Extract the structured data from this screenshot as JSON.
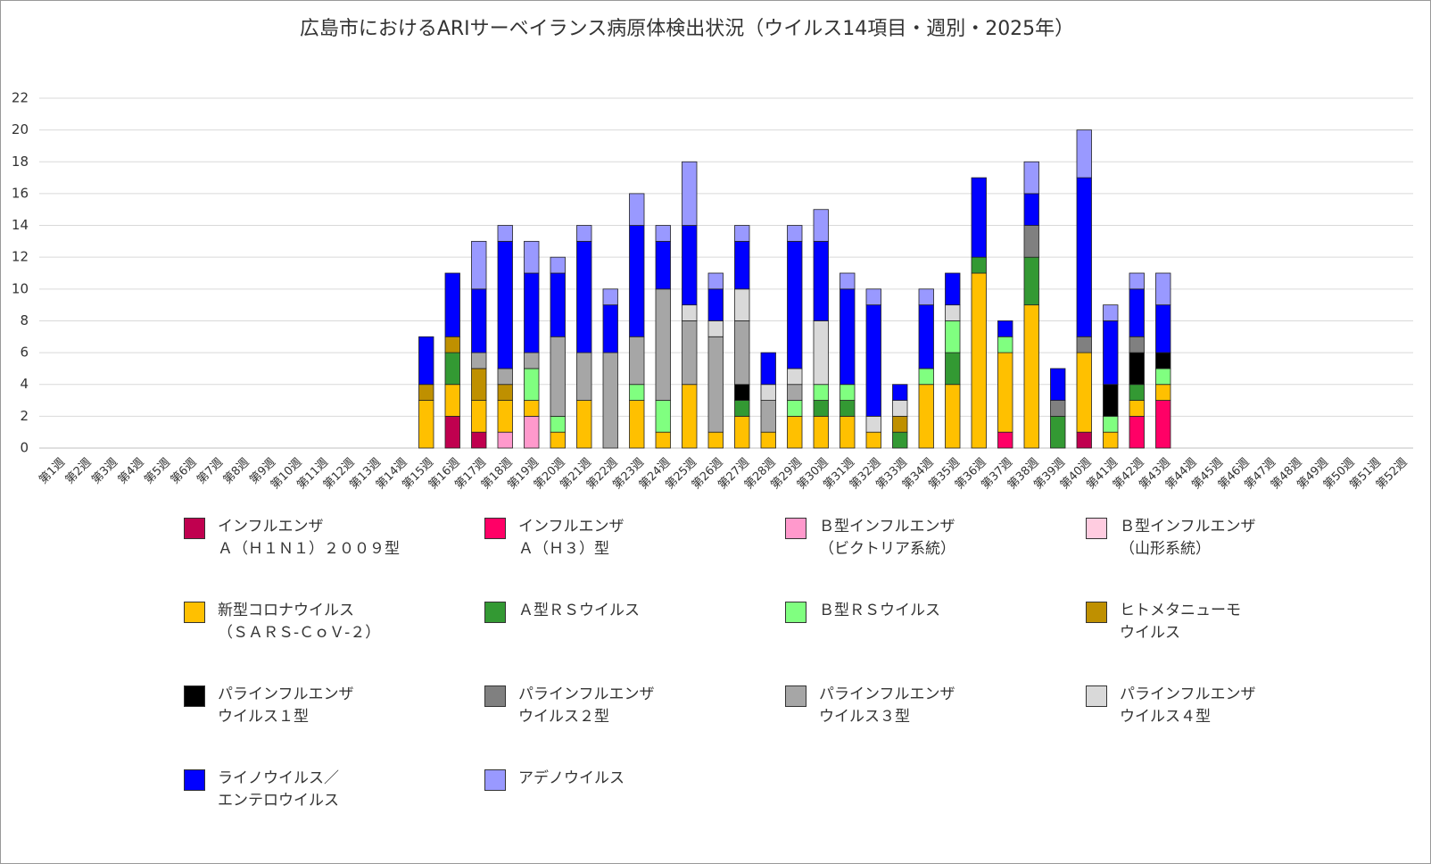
{
  "chart_data": {
    "type": "stacked-bar",
    "title": "広島市におけるARIサーベイランス病原体検出状況（ウイルス14項目・週別・2025年）",
    "categories": [
      "第1週",
      "第2週",
      "第3週",
      "第4週",
      "第5週",
      "第6週",
      "第7週",
      "第8週",
      "第9週",
      "第10週",
      "第11週",
      "第12週",
      "第13週",
      "第14週",
      "第15週",
      "第16週",
      "第17週",
      "第18週",
      "第19週",
      "第20週",
      "第21週",
      "第22週",
      "第23週",
      "第24週",
      "第25週",
      "第26週",
      "第27週",
      "第28週",
      "第29週",
      "第30週",
      "第31週",
      "第32週",
      "第33週",
      "第34週",
      "第35週",
      "第36週",
      "第37週",
      "第38週",
      "第39週",
      "第40週",
      "第41週",
      "第42週",
      "第43週",
      "第44週",
      "第45週",
      "第46週",
      "第47週",
      "第48週",
      "第49週",
      "第50週",
      "第51週",
      "第52週"
    ],
    "ylim": [
      0,
      22
    ],
    "yticks": [
      0,
      2,
      4,
      6,
      8,
      10,
      12,
      14,
      16,
      18,
      20,
      22
    ],
    "grid": true,
    "series": [
      {
        "name": "インフルエンザ\nＡ（Ｈ１Ｎ１）２００９型",
        "color": "#c0004f",
        "values": [
          0,
          0,
          0,
          0,
          0,
          0,
          0,
          0,
          0,
          0,
          0,
          0,
          0,
          0,
          0,
          2,
          1,
          0,
          0,
          0,
          0,
          0,
          0,
          0,
          0,
          0,
          0,
          0,
          0,
          0,
          0,
          0,
          0,
          0,
          0,
          0,
          0,
          0,
          0,
          1,
          0,
          0,
          0,
          0,
          0,
          0,
          0,
          0,
          0,
          0,
          0,
          0
        ]
      },
      {
        "name": "インフルエンザ\nＡ（Ｈ３）型",
        "color": "#ff0066",
        "values": [
          0,
          0,
          0,
          0,
          0,
          0,
          0,
          0,
          0,
          0,
          0,
          0,
          0,
          0,
          0,
          0,
          0,
          0,
          0,
          0,
          0,
          0,
          0,
          0,
          0,
          0,
          0,
          0,
          0,
          0,
          0,
          0,
          0,
          0,
          0,
          0,
          1,
          0,
          0,
          0,
          0,
          2,
          3,
          0,
          0,
          0,
          0,
          0,
          0,
          0,
          0,
          0
        ]
      },
      {
        "name": "Ｂ型インフルエンザ\n（ビクトリア系統）",
        "color": "#ff99cc",
        "values": [
          0,
          0,
          0,
          0,
          0,
          0,
          0,
          0,
          0,
          0,
          0,
          0,
          0,
          0,
          0,
          0,
          0,
          1,
          2,
          0,
          0,
          0,
          0,
          0,
          0,
          0,
          0,
          0,
          0,
          0,
          0,
          0,
          0,
          0,
          0,
          0,
          0,
          0,
          0,
          0,
          0,
          0,
          0,
          0,
          0,
          0,
          0,
          0,
          0,
          0,
          0,
          0
        ]
      },
      {
        "name": "Ｂ型インフルエンザ\n（山形系統）",
        "color": "#ffcce0",
        "values": [
          0,
          0,
          0,
          0,
          0,
          0,
          0,
          0,
          0,
          0,
          0,
          0,
          0,
          0,
          0,
          0,
          0,
          0,
          0,
          0,
          0,
          0,
          0,
          0,
          0,
          0,
          0,
          0,
          0,
          0,
          0,
          0,
          0,
          0,
          0,
          0,
          0,
          0,
          0,
          0,
          0,
          0,
          0,
          0,
          0,
          0,
          0,
          0,
          0,
          0,
          0,
          0
        ]
      },
      {
        "name": "新型コロナウイルス\n（ＳＡＲＳ-ＣｏＶ-２）",
        "color": "#ffc000",
        "values": [
          0,
          0,
          0,
          0,
          0,
          0,
          0,
          0,
          0,
          0,
          0,
          0,
          0,
          0,
          3,
          2,
          2,
          2,
          1,
          1,
          3,
          0,
          3,
          1,
          4,
          1,
          2,
          1,
          2,
          2,
          2,
          1,
          0,
          4,
          4,
          11,
          5,
          9,
          0,
          5,
          1,
          1,
          1,
          0,
          0,
          0,
          0,
          0,
          0,
          0,
          0,
          0
        ]
      },
      {
        "name": "Ａ型ＲＳウイルス",
        "color": "#339933",
        "values": [
          0,
          0,
          0,
          0,
          0,
          0,
          0,
          0,
          0,
          0,
          0,
          0,
          0,
          0,
          0,
          2,
          0,
          0,
          0,
          0,
          0,
          0,
          0,
          0,
          0,
          0,
          1,
          0,
          0,
          1,
          1,
          0,
          1,
          0,
          2,
          1,
          0,
          3,
          2,
          0,
          0,
          1,
          0,
          0,
          0,
          0,
          0,
          0,
          0,
          0,
          0,
          0
        ]
      },
      {
        "name": "Ｂ型ＲＳウイルス",
        "color": "#80ff80",
        "values": [
          0,
          0,
          0,
          0,
          0,
          0,
          0,
          0,
          0,
          0,
          0,
          0,
          0,
          0,
          0,
          0,
          0,
          0,
          2,
          1,
          0,
          0,
          1,
          2,
          0,
          0,
          0,
          0,
          1,
          1,
          1,
          0,
          0,
          1,
          2,
          0,
          1,
          0,
          0,
          0,
          1,
          0,
          1,
          0,
          0,
          0,
          0,
          0,
          0,
          0,
          0,
          0
        ]
      },
      {
        "name": "ヒトメタニューモ\nウイルス",
        "color": "#bf9000",
        "values": [
          0,
          0,
          0,
          0,
          0,
          0,
          0,
          0,
          0,
          0,
          0,
          0,
          0,
          0,
          1,
          1,
          2,
          1,
          0,
          0,
          0,
          0,
          0,
          0,
          0,
          0,
          0,
          0,
          0,
          0,
          0,
          0,
          1,
          0,
          0,
          0,
          0,
          0,
          0,
          0,
          0,
          0,
          0,
          0,
          0,
          0,
          0,
          0,
          0,
          0,
          0,
          0
        ]
      },
      {
        "name": "パラインフルエンザ\nウイルス１型",
        "color": "#000000",
        "values": [
          0,
          0,
          0,
          0,
          0,
          0,
          0,
          0,
          0,
          0,
          0,
          0,
          0,
          0,
          0,
          0,
          0,
          0,
          0,
          0,
          0,
          0,
          0,
          0,
          0,
          0,
          1,
          0,
          0,
          0,
          0,
          0,
          0,
          0,
          0,
          0,
          0,
          0,
          0,
          0,
          2,
          2,
          1,
          0,
          0,
          0,
          0,
          0,
          0,
          0,
          0,
          0
        ]
      },
      {
        "name": "パラインフルエンザ\nウイルス２型",
        "color": "#808080",
        "values": [
          0,
          0,
          0,
          0,
          0,
          0,
          0,
          0,
          0,
          0,
          0,
          0,
          0,
          0,
          0,
          0,
          0,
          0,
          0,
          0,
          0,
          0,
          0,
          0,
          0,
          0,
          0,
          0,
          0,
          0,
          0,
          0,
          0,
          0,
          0,
          0,
          0,
          2,
          1,
          1,
          0,
          1,
          0,
          0,
          0,
          0,
          0,
          0,
          0,
          0,
          0,
          0
        ]
      },
      {
        "name": "パラインフルエンザ\nウイルス３型",
        "color": "#a6a6a6",
        "values": [
          0,
          0,
          0,
          0,
          0,
          0,
          0,
          0,
          0,
          0,
          0,
          0,
          0,
          0,
          0,
          0,
          1,
          1,
          1,
          5,
          3,
          6,
          3,
          7,
          4,
          6,
          4,
          2,
          1,
          0,
          0,
          0,
          0,
          0,
          0,
          0,
          0,
          0,
          0,
          0,
          0,
          0,
          0,
          0,
          0,
          0,
          0,
          0,
          0,
          0,
          0,
          0
        ]
      },
      {
        "name": "パラインフルエンザ\nウイルス４型",
        "color": "#d9d9d9",
        "values": [
          0,
          0,
          0,
          0,
          0,
          0,
          0,
          0,
          0,
          0,
          0,
          0,
          0,
          0,
          0,
          0,
          0,
          0,
          0,
          0,
          0,
          0,
          0,
          0,
          1,
          1,
          2,
          1,
          1,
          4,
          0,
          1,
          1,
          0,
          1,
          0,
          0,
          0,
          0,
          0,
          0,
          0,
          0,
          0,
          0,
          0,
          0,
          0,
          0,
          0,
          0,
          0
        ]
      },
      {
        "name": "ライノウイルス／\nエンテロウイルス",
        "color": "#0000ff",
        "values": [
          0,
          0,
          0,
          0,
          0,
          0,
          0,
          0,
          0,
          0,
          0,
          0,
          0,
          0,
          3,
          4,
          4,
          8,
          5,
          4,
          7,
          3,
          7,
          3,
          5,
          2,
          3,
          2,
          8,
          5,
          6,
          7,
          1,
          4,
          2,
          5,
          1,
          2,
          2,
          10,
          4,
          3,
          3,
          0,
          0,
          0,
          0,
          0,
          0,
          0,
          0,
          0
        ]
      },
      {
        "name": "アデノウイルス",
        "color": "#9999ff",
        "values": [
          0,
          0,
          0,
          0,
          0,
          0,
          0,
          0,
          0,
          0,
          0,
          0,
          0,
          0,
          0,
          0,
          3,
          1,
          2,
          1,
          1,
          1,
          2,
          1,
          4,
          1,
          1,
          0,
          1,
          2,
          1,
          1,
          0,
          1,
          0,
          0,
          0,
          2,
          0,
          3,
          1,
          1,
          2,
          0,
          0,
          0,
          0,
          0,
          0,
          0,
          0,
          0
        ]
      }
    ]
  }
}
